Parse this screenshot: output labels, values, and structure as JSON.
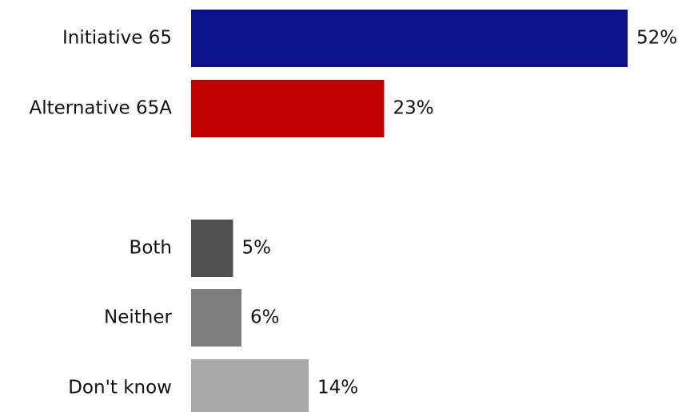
{
  "chart_data": {
    "type": "bar",
    "orientation": "horizontal",
    "title": "",
    "xlabel": "",
    "ylabel": "",
    "xlim": [
      0,
      52
    ],
    "grid": false,
    "legend": "none",
    "categories": [
      "Initiative 65",
      "Alternative 65A",
      "Both",
      "Neither",
      "Don't know"
    ],
    "values": [
      52,
      23,
      5,
      6,
      14
    ],
    "value_labels": [
      "52%",
      "23%",
      "5%",
      "6%",
      "14%"
    ],
    "colors": [
      "#0c128a",
      "#c00000",
      "#515151",
      "#7e7e7e",
      "#a8a8a8"
    ]
  }
}
